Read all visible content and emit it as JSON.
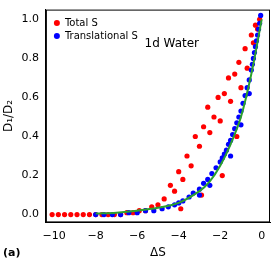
{
  "chart_data": {
    "type": "scatter",
    "x_label": "ΔS",
    "y_label": "D₁/D₂",
    "annotations": [
      "1d Water",
      "(a)"
    ],
    "legend": "upper left",
    "grid": false,
    "xlim": [
      -10.4,
      0.4
    ],
    "ylim": [
      -0.04,
      1.05
    ],
    "xticks": [
      {
        "value": -10,
        "label": "−10"
      },
      {
        "value": -8,
        "label": "−8"
      },
      {
        "value": -6,
        "label": "−6"
      },
      {
        "value": -4,
        "label": "−4"
      },
      {
        "value": -2,
        "label": "−2"
      },
      0
    ],
    "yticks": [
      {
        "value": 0,
        "label": "0.0"
      },
      0.2,
      0.4,
      0.6,
      0.8,
      {
        "value": 1,
        "label": "1.0"
      }
    ],
    "series": [
      {
        "name": "Total S",
        "color": "#ff0000",
        "marker": "circle",
        "x": [
          -10.1,
          -9.8,
          -9.5,
          -9.2,
          -8.9,
          -8.6,
          -8.3,
          -8.0,
          -7.7,
          -7.4,
          -7.1,
          -6.8,
          -6.5,
          -6.2,
          -5.9,
          -5.6,
          -5.3,
          -5.0,
          -4.7,
          -4.4,
          -4.2,
          -4.0,
          -3.8,
          -3.6,
          -3.4,
          -3.2,
          -3.0,
          -2.8,
          -2.6,
          -2.5,
          -2.3,
          -2.1,
          -2.0,
          -1.8,
          -1.6,
          -1.5,
          -1.3,
          -1.1,
          -1.0,
          -0.8,
          -0.7,
          -0.5,
          -0.4,
          -0.3,
          -0.2,
          -0.1,
          -3.9,
          -2.9,
          -1.9,
          -1.2
        ],
        "values": [
          0,
          0,
          0,
          0,
          0,
          0,
          0,
          0,
          0,
          0,
          0,
          0,
          0.01,
          0.01,
          0.02,
          0.02,
          0.04,
          0.05,
          0.08,
          0.15,
          0.12,
          0.22,
          0.18,
          0.3,
          0.25,
          0.4,
          0.35,
          0.45,
          0.55,
          0.42,
          0.5,
          0.6,
          0.48,
          0.62,
          0.7,
          0.58,
          0.72,
          0.78,
          0.65,
          0.85,
          0.75,
          0.92,
          0.88,
          0.97,
          0.95,
          1.0,
          0.03,
          0.1,
          0.2,
          0.4
        ]
      },
      {
        "name": "Translational S",
        "color": "#0000ff",
        "marker": "circle",
        "x": [
          -8.0,
          -7.6,
          -7.2,
          -6.8,
          -6.4,
          -6.0,
          -5.6,
          -5.2,
          -4.8,
          -4.5,
          -4.2,
          -4.0,
          -3.8,
          -3.5,
          -3.3,
          -3.0,
          -2.8,
          -2.6,
          -2.4,
          -2.2,
          -2.0,
          -1.9,
          -1.8,
          -1.7,
          -1.6,
          -1.5,
          -1.4,
          -1.3,
          -1.2,
          -1.1,
          -1.0,
          -0.9,
          -0.8,
          -0.7,
          -0.6,
          -0.5,
          -0.45,
          -0.4,
          -0.35,
          -0.3,
          -0.25,
          -0.2,
          -0.15,
          -0.1,
          -0.05,
          -1.5,
          -1.0,
          -0.6,
          -2.5,
          -3.0
        ],
        "values": [
          0,
          0,
          0,
          0,
          0.01,
          0.01,
          0.02,
          0.02,
          0.03,
          0.04,
          0.05,
          0.06,
          0.07,
          0.09,
          0.11,
          0.13,
          0.16,
          0.18,
          0.21,
          0.24,
          0.27,
          0.29,
          0.31,
          0.33,
          0.36,
          0.38,
          0.41,
          0.44,
          0.47,
          0.5,
          0.53,
          0.57,
          0.61,
          0.65,
          0.69,
          0.74,
          0.77,
          0.8,
          0.83,
          0.86,
          0.89,
          0.92,
          0.95,
          0.98,
          1.02,
          0.3,
          0.46,
          0.62,
          0.15,
          0.1
        ]
      },
      {
        "type": "line",
        "color": "#2ca02c",
        "line_style": "solid",
        "x": [
          -8,
          -7,
          -6,
          -5,
          -4,
          -3,
          -2.5,
          -2,
          -1.5,
          -1,
          -0.5,
          0
        ],
        "values": [
          0.005,
          0.01,
          0.02,
          0.035,
          0.06,
          0.12,
          0.17,
          0.25,
          0.36,
          0.5,
          0.72,
          1.0
        ]
      }
    ]
  }
}
